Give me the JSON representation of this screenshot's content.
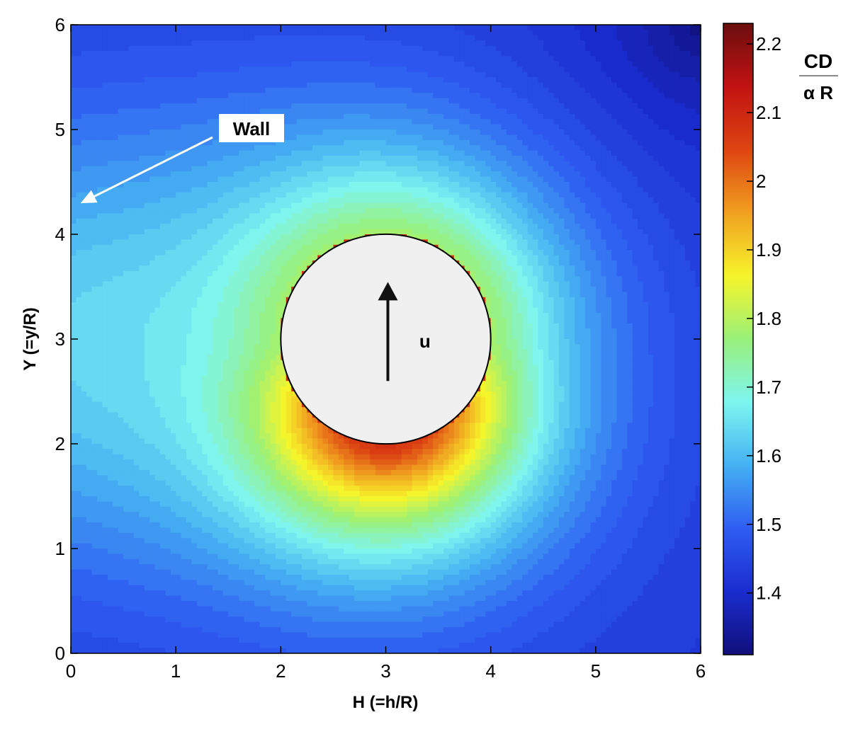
{
  "chart_data": {
    "type": "heatmap",
    "title": "",
    "xlabel": "H (=h/R)",
    "ylabel": "Y (=y/R)",
    "xlim": [
      0,
      6
    ],
    "ylim": [
      0,
      6
    ],
    "xticks": [
      "0",
      "1",
      "2",
      "3",
      "4",
      "5",
      "6"
    ],
    "yticks": [
      "0",
      "1",
      "2",
      "3",
      "4",
      "5",
      "6"
    ],
    "colorbar": {
      "label_numerator": "CD",
      "label_denominator": "α R",
      "range": [
        1.31,
        2.23
      ],
      "ticks": [
        "1.4",
        "1.5",
        "1.6",
        "1.7",
        "1.8",
        "1.9",
        "2",
        "2.1",
        "2.2"
      ]
    },
    "field": {
      "description_values": "drag coefficient ratio, peak just below the sphere, decreasing with distance",
      "max_near_sphere_bottom": 2.08,
      "value_at_sphere_top": 1.78,
      "value_at_wall_mid": 1.64,
      "value_at_corners": 1.42,
      "minimum_top_right": 1.31
    },
    "sphere": {
      "center": [
        3,
        3
      ],
      "radius": 1,
      "velocity_label": "u"
    },
    "annotations": [
      {
        "text": "Wall",
        "points_to": [
          0.1,
          4.3
        ]
      }
    ],
    "grid": false,
    "legend_position": "right"
  },
  "colors": {
    "colormap": [
      "#10107a",
      "#1a2ccf",
      "#2f5df2",
      "#45b0f2",
      "#7ff5f0",
      "#99f07a",
      "#f7f52a",
      "#f0a020",
      "#dd4412",
      "#c21212",
      "#6b0e0e"
    ],
    "sphere_fill": "#f0f0f0",
    "text": "#000000"
  }
}
